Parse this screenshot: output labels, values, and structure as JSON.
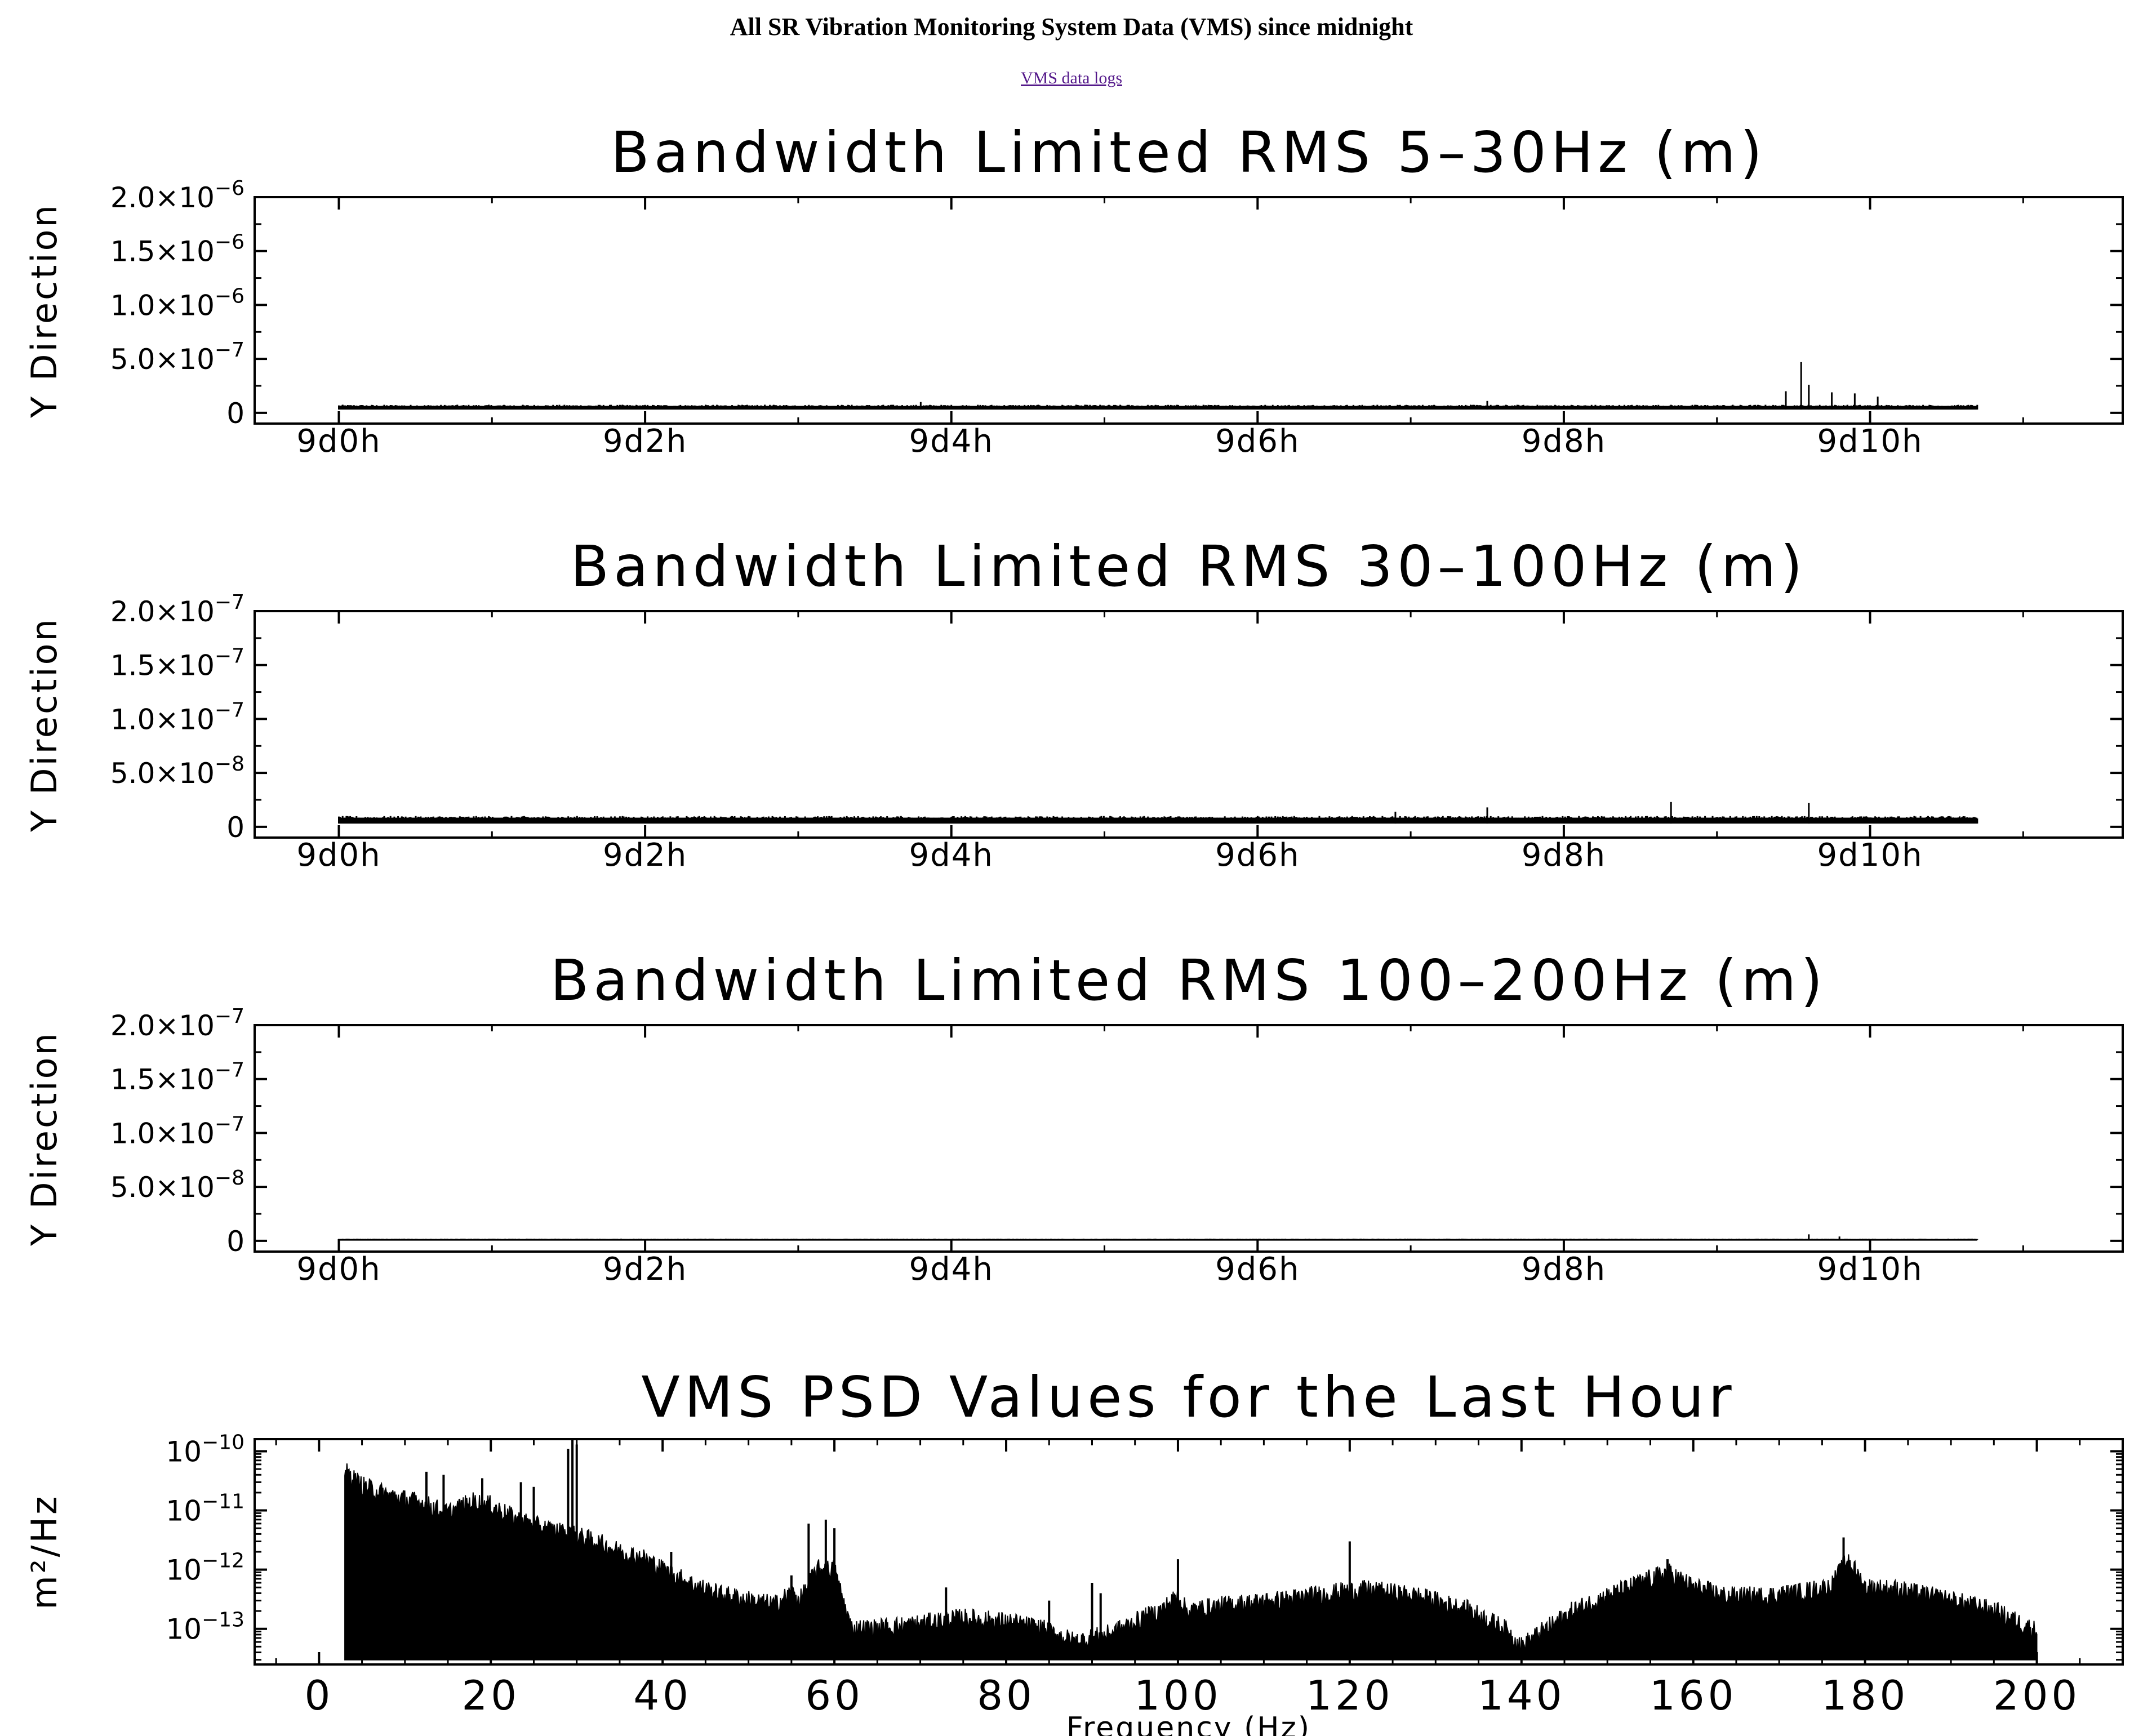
{
  "page": {
    "title": "All SR Vibration Monitoring System Data (VMS) since midnight",
    "link_text": "VMS data logs"
  },
  "chart_data": [
    {
      "type": "line",
      "title": "Bandwidth Limited RMS 5–30Hz (m)",
      "ylabel": "Y Direction",
      "x_unit": "hours since 9d0h",
      "xlim": [
        -0.55,
        11.65
      ],
      "x_data_range": [
        0,
        10.7
      ],
      "ylim": [
        -1e-07,
        2e-06
      ],
      "xticks": [
        {
          "value": 0,
          "label": "9d0h"
        },
        {
          "value": 2,
          "label": "9d2h"
        },
        {
          "value": 4,
          "label": "9d4h"
        },
        {
          "value": 6,
          "label": "9d6h"
        },
        {
          "value": 8,
          "label": "9d8h"
        },
        {
          "value": 10,
          "label": "9d10h"
        }
      ],
      "yticks": [
        {
          "value": 0,
          "label": "0"
        },
        {
          "value": 5e-07,
          "mant": "5.0×10",
          "exp": "−7"
        },
        {
          "value": 1e-06,
          "mant": "1.0×10",
          "exp": "−6"
        },
        {
          "value": 1.5e-06,
          "mant": "1.5×10",
          "exp": "−6"
        },
        {
          "value": 2e-06,
          "mant": "2.0×10",
          "exp": "−6"
        }
      ],
      "series": [
        {
          "baseline_low": 3e-08,
          "baseline_high": 7.5e-08,
          "spikes": [
            [
              9.45,
              2e-07
            ],
            [
              9.55,
              4.7e-07
            ],
            [
              9.6,
              2.6e-07
            ],
            [
              9.75,
              1.9e-07
            ],
            [
              9.9,
              1.8e-07
            ],
            [
              10.05,
              1.5e-07
            ],
            [
              7.5,
              1.1e-07
            ],
            [
              3.8,
              1e-07
            ]
          ]
        }
      ]
    },
    {
      "type": "line",
      "title": "Bandwidth Limited RMS 30–100Hz (m)",
      "ylabel": "Y Direction",
      "x_unit": "hours since 9d0h",
      "xlim": [
        -0.55,
        11.65
      ],
      "x_data_range": [
        0,
        10.7
      ],
      "ylim": [
        -1e-08,
        2e-07
      ],
      "xticks": [
        {
          "value": 0,
          "label": "9d0h"
        },
        {
          "value": 2,
          "label": "9d2h"
        },
        {
          "value": 4,
          "label": "9d4h"
        },
        {
          "value": 6,
          "label": "9d6h"
        },
        {
          "value": 8,
          "label": "9d8h"
        },
        {
          "value": 10,
          "label": "9d10h"
        }
      ],
      "yticks": [
        {
          "value": 0,
          "label": "0"
        },
        {
          "value": 5e-08,
          "mant": "5.0×10",
          "exp": "−8"
        },
        {
          "value": 1e-07,
          "mant": "1.0×10",
          "exp": "−7"
        },
        {
          "value": 1.5e-07,
          "mant": "1.5×10",
          "exp": "−7"
        },
        {
          "value": 2e-07,
          "mant": "2.0×10",
          "exp": "−7"
        }
      ],
      "series": [
        {
          "baseline_low": 3e-09,
          "baseline_high": 1e-08,
          "spikes": [
            [
              7.5,
              1.8e-08
            ],
            [
              8.7,
              2.3e-08
            ],
            [
              9.6,
              2.2e-08
            ],
            [
              6.9,
              1.4e-08
            ]
          ]
        }
      ]
    },
    {
      "type": "line",
      "title": "Bandwidth Limited RMS 100–200Hz (m)",
      "ylabel": "Y Direction",
      "x_unit": "hours since 9d0h",
      "xlim": [
        -0.55,
        11.65
      ],
      "x_data_range": [
        0,
        10.7
      ],
      "ylim": [
        -1e-08,
        2e-07
      ],
      "xticks": [
        {
          "value": 0,
          "label": "9d0h"
        },
        {
          "value": 2,
          "label": "9d2h"
        },
        {
          "value": 4,
          "label": "9d4h"
        },
        {
          "value": 6,
          "label": "9d6h"
        },
        {
          "value": 8,
          "label": "9d8h"
        },
        {
          "value": 10,
          "label": "9d10h"
        }
      ],
      "yticks": [
        {
          "value": 0,
          "label": "0"
        },
        {
          "value": 5e-08,
          "mant": "5.0×10",
          "exp": "−8"
        },
        {
          "value": 1e-07,
          "mant": "1.0×10",
          "exp": "−7"
        },
        {
          "value": 1.5e-07,
          "mant": "1.5×10",
          "exp": "−7"
        },
        {
          "value": 2e-07,
          "mant": "2.0×10",
          "exp": "−7"
        }
      ],
      "series": [
        {
          "baseline_low": 1e-09,
          "baseline_high": 2e-09,
          "spikes": [
            [
              9.6,
              6e-09
            ],
            [
              9.8,
              4e-09
            ]
          ]
        }
      ]
    },
    {
      "type": "area",
      "title": "VMS PSD Values for the Last Hour",
      "ylabel": "m²/Hz",
      "xlabel": "Frequency (Hz)",
      "y_scale": "log",
      "xlim": [
        -7.5,
        210
      ],
      "x_data_range": [
        3,
        200
      ],
      "ylim": [
        2.5e-14,
        1.6e-10
      ],
      "floor": 3e-14,
      "xticks": [
        {
          "value": 0,
          "label": "0"
        },
        {
          "value": 20,
          "label": "20"
        },
        {
          "value": 40,
          "label": "40"
        },
        {
          "value": 60,
          "label": "60"
        },
        {
          "value": 80,
          "label": "80"
        },
        {
          "value": 100,
          "label": "100"
        },
        {
          "value": 120,
          "label": "120"
        },
        {
          "value": 140,
          "label": "140"
        },
        {
          "value": 160,
          "label": "160"
        },
        {
          "value": 180,
          "label": "180"
        },
        {
          "value": 200,
          "label": "200"
        }
      ],
      "yticks": [
        {
          "value": 1e-13,
          "mant": "10",
          "exp": "−13"
        },
        {
          "value": 1e-12,
          "mant": "10",
          "exp": "−12"
        },
        {
          "value": 1e-11,
          "mant": "10",
          "exp": "−11"
        },
        {
          "value": 1e-10,
          "mant": "10",
          "exp": "−10"
        }
      ],
      "envelope": [
        [
          3,
          4.5e-11
        ],
        [
          5,
          2.6e-11
        ],
        [
          8,
          1.8e-11
        ],
        [
          12,
          1.3e-11
        ],
        [
          15,
          9e-12
        ],
        [
          18,
          1.4e-11
        ],
        [
          20,
          1.2e-11
        ],
        [
          23,
          7e-12
        ],
        [
          26,
          5e-12
        ],
        [
          29,
          4e-12
        ],
        [
          32,
          3e-12
        ],
        [
          35,
          2e-12
        ],
        [
          38,
          1.5e-12
        ],
        [
          40,
          1e-12
        ],
        [
          43,
          6e-13
        ],
        [
          46,
          4e-13
        ],
        [
          50,
          3e-13
        ],
        [
          53,
          2.5e-13
        ],
        [
          55,
          4e-13
        ],
        [
          56,
          3e-13
        ],
        [
          58,
          1e-12
        ],
        [
          60,
          1e-12
        ],
        [
          61,
          3e-13
        ],
        [
          62,
          1e-13
        ],
        [
          65,
          1e-13
        ],
        [
          70,
          1.2e-13
        ],
        [
          75,
          1.5e-13
        ],
        [
          80,
          1.3e-13
        ],
        [
          84,
          1e-13
        ],
        [
          88,
          6e-14
        ],
        [
          92,
          8e-14
        ],
        [
          96,
          1.5e-13
        ],
        [
          98,
          2e-13
        ],
        [
          100,
          3.5e-13
        ],
        [
          101,
          2e-13
        ],
        [
          106,
          2.5e-13
        ],
        [
          112,
          3e-13
        ],
        [
          118,
          4e-13
        ],
        [
          122,
          4.5e-13
        ],
        [
          128,
          3.5e-13
        ],
        [
          134,
          2e-13
        ],
        [
          138,
          1e-13
        ],
        [
          140,
          5e-14
        ],
        [
          142,
          8e-14
        ],
        [
          146,
          2e-13
        ],
        [
          150,
          3.5e-13
        ],
        [
          154,
          6e-13
        ],
        [
          157,
          9e-13
        ],
        [
          160,
          5e-13
        ],
        [
          164,
          3.5e-13
        ],
        [
          168,
          3.5e-13
        ],
        [
          172,
          4e-13
        ],
        [
          176,
          5e-13
        ],
        [
          178,
          1.5e-12
        ],
        [
          180,
          5e-13
        ],
        [
          184,
          4.5e-13
        ],
        [
          190,
          3e-13
        ],
        [
          195,
          2e-13
        ],
        [
          200,
          9e-14
        ]
      ],
      "spikes": [
        [
          12.5,
          4.5e-11
        ],
        [
          14.5,
          4e-11
        ],
        [
          19,
          3.5e-11
        ],
        [
          23.5,
          3e-11
        ],
        [
          25,
          2.5e-11
        ],
        [
          29,
          1.1e-10
        ],
        [
          29.5,
          1.6e-10
        ],
        [
          30,
          1.3e-10
        ],
        [
          41,
          2e-12
        ],
        [
          55,
          8e-13
        ],
        [
          57,
          6e-12
        ],
        [
          59,
          7e-12
        ],
        [
          60,
          5e-12
        ],
        [
          73,
          5e-13
        ],
        [
          85,
          3e-13
        ],
        [
          90,
          6e-13
        ],
        [
          91,
          4e-13
        ],
        [
          100,
          1.5e-12
        ],
        [
          120,
          3e-12
        ],
        [
          157,
          1.5e-12
        ],
        [
          177.5,
          3.5e-12
        ]
      ]
    }
  ]
}
